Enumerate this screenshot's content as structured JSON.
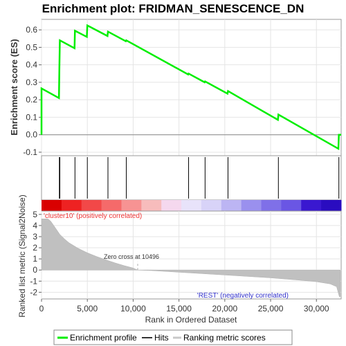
{
  "chart_data": {
    "type": "line",
    "title": "Enrichment plot: FRIDMAN_SENESCENCE_DN",
    "es_panel": {
      "ylabel": "Enrichment score (ES)",
      "ylim": [
        -0.12,
        0.66
      ],
      "yticks": [
        -0.1,
        0.0,
        0.1,
        0.2,
        0.3,
        0.4,
        0.5,
        0.6
      ],
      "ytick_labels": [
        "-0.1",
        "0.0",
        "0.1",
        "0.2",
        "0.3",
        "0.4",
        "0.5",
        "0.6"
      ],
      "series": [
        {
          "name": "Enrichment profile",
          "color": "#00ee00",
          "x": [
            0,
            1,
            1900,
            1950,
            2000,
            3600,
            3650,
            4950,
            5000,
            7200,
            7250,
            9200,
            9250,
            16000,
            16050,
            17800,
            17850,
            20300,
            20350,
            25800,
            25850,
            32400,
            32450,
            32700
          ],
          "y": [
            0.0,
            0.265,
            0.21,
            0.38,
            0.54,
            0.495,
            0.595,
            0.56,
            0.625,
            0.565,
            0.59,
            0.535,
            0.54,
            0.345,
            0.35,
            0.3,
            0.305,
            0.235,
            0.25,
            0.085,
            0.115,
            -0.08,
            0.0,
            0.0
          ]
        }
      ]
    },
    "hits_panel": {
      "hit_positions": [
        1950,
        2000,
        3650,
        5000,
        7250,
        9250,
        16050,
        17850,
        20350,
        25850,
        32450
      ]
    },
    "heatmap_colors": [
      "#d90000",
      "#ee2222",
      "#f24848",
      "#f56a6a",
      "#f79393",
      "#f7bcbc",
      "#f5d8ee",
      "#e8e3fa",
      "#d8d3f8",
      "#bcb5f3",
      "#9a90ee",
      "#7f70e8",
      "#6a56e4",
      "#3a18d0",
      "#2a0cc0"
    ],
    "ranked_panel": {
      "ylabel": "Ranked list metric (Signal2Noise)",
      "ylim": [
        -2.6,
        5.3
      ],
      "yticks": [
        -2,
        -1,
        0,
        1,
        2,
        3,
        4,
        5
      ],
      "ytick_labels": [
        "-2",
        "-1",
        "0",
        "1",
        "2",
        "3",
        "4",
        "5"
      ],
      "zero_cross_label": "Zero cross at 10496",
      "zero_cross": 10496,
      "pos_label": "'cluster10' (positively correlated)",
      "neg_label": "'REST' (negatively correlated)",
      "curve": {
        "x": [
          0,
          700,
          1000,
          1500,
          2000,
          2500,
          3000,
          4000,
          5000,
          6000,
          7000,
          8000,
          9000,
          10000,
          10496,
          12000,
          15000,
          20000,
          25000,
          28000,
          30000,
          31500,
          32200,
          32500,
          32600
        ],
        "y": [
          4.6,
          4.6,
          4.4,
          3.8,
          3.2,
          2.8,
          2.45,
          1.95,
          1.55,
          1.22,
          0.92,
          0.65,
          0.4,
          0.18,
          0.0,
          -0.05,
          -0.2,
          -0.45,
          -0.7,
          -0.9,
          -1.05,
          -1.25,
          -1.5,
          -2.4,
          -2.4
        ]
      }
    },
    "xaxis": {
      "xlabel": "Rank in Ordered Dataset",
      "xlim": [
        0,
        32700
      ],
      "xticks": [
        0,
        5000,
        10000,
        15000,
        20000,
        25000,
        30000
      ],
      "xtick_labels": [
        "0",
        "5,000",
        "10,000",
        "15,000",
        "20,000",
        "25,000",
        "30,000"
      ]
    },
    "legend": {
      "placement": "bottom",
      "entries": [
        {
          "label": "Enrichment profile",
          "color": "#00ee00"
        },
        {
          "label": "Hits",
          "color": "#333333"
        },
        {
          "label": "Ranking metric scores",
          "color": "#c8c8c8"
        }
      ]
    },
    "grid": true,
    "colors": {
      "profile": "#00ee00",
      "hits": "#000000",
      "metric_fill": "#c0c0c0",
      "pos_label": "#ee3333",
      "neg_label": "#3333cc"
    }
  }
}
